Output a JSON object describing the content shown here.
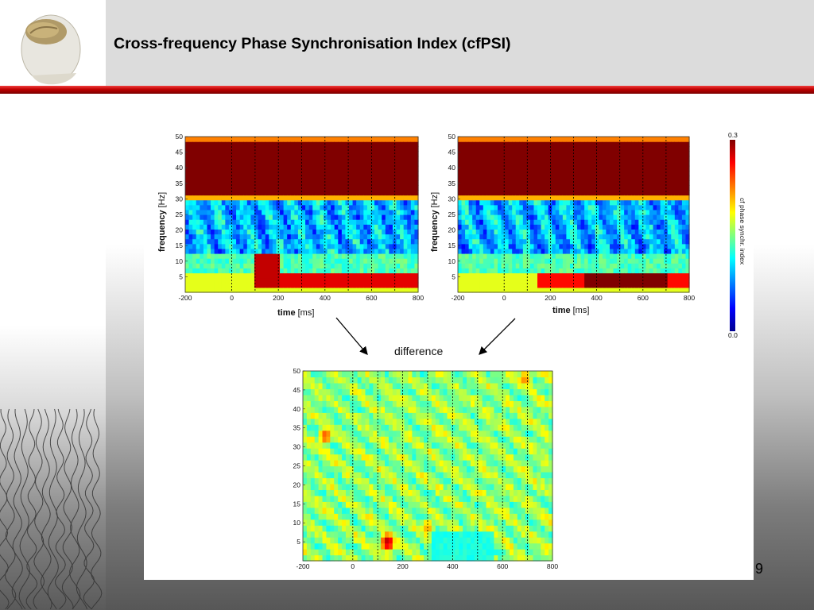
{
  "slide": {
    "title": "Cross-frequency Phase Synchronisation Index (cfPSI)",
    "page_number": "9",
    "accent_color": "#c00000"
  },
  "figure": {
    "difference_label": "difference",
    "colorbar": {
      "label": "cf phase synchr. index",
      "min_label": "0.0",
      "max_label": "0.3",
      "colormap": "jet"
    }
  },
  "chart_data": [
    {
      "type": "heatmap",
      "panel": "top-left",
      "xlabel": "time",
      "xlabel_unit": "[ms]",
      "ylabel": "frequency",
      "ylabel_unit": "[Hz]",
      "x_ticks": [
        "-200",
        "0",
        "200",
        "400",
        "600",
        "800"
      ],
      "y_ticks": [
        "5",
        "10",
        "15",
        "20",
        "25",
        "30",
        "35",
        "40",
        "45",
        "50"
      ],
      "xlim": [
        -200,
        800
      ],
      "ylim": [
        0,
        50
      ],
      "dashed_time_markers_ms": [
        0,
        100,
        200,
        300,
        400,
        500,
        600,
        700
      ],
      "regions": [
        {
          "t": [
            -200,
            800
          ],
          "f": [
            32,
            48
          ],
          "level": 0.3
        },
        {
          "t": [
            100,
            800
          ],
          "f": [
            1,
            6
          ],
          "level": 0.27
        },
        {
          "t": [
            100,
            200
          ],
          "f": [
            1,
            13
          ],
          "level": 0.28
        }
      ]
    },
    {
      "type": "heatmap",
      "panel": "top-right",
      "xlabel": "time",
      "xlabel_unit": "[ms]",
      "ylabel": "frequency",
      "ylabel_unit": "[Hz]",
      "x_ticks": [
        "-200",
        "0",
        "200",
        "400",
        "600",
        "800"
      ],
      "y_ticks": [
        "5",
        "10",
        "15",
        "20",
        "25",
        "30",
        "35",
        "40",
        "45",
        "50"
      ],
      "xlim": [
        -200,
        800
      ],
      "ylim": [
        0,
        50
      ],
      "dashed_time_markers_ms": [
        0,
        100,
        200,
        300,
        400,
        500,
        600,
        700
      ],
      "regions": [
        {
          "t": [
            -200,
            800
          ],
          "f": [
            32,
            48
          ],
          "level": 0.3
        },
        {
          "t": [
            150,
            800
          ],
          "f": [
            1,
            7
          ],
          "level": 0.26
        },
        {
          "t": [
            350,
            700
          ],
          "f": [
            1,
            6
          ],
          "level": 0.3
        }
      ]
    },
    {
      "type": "heatmap",
      "panel": "bottom-difference",
      "x_ticks": [
        "-200",
        "0",
        "200",
        "400",
        "600",
        "800"
      ],
      "y_ticks": [
        "5",
        "10",
        "15",
        "20",
        "25",
        "30",
        "35",
        "40",
        "45",
        "50"
      ],
      "xlim": [
        -200,
        800
      ],
      "ylim": [
        0,
        50
      ],
      "dashed_time_markers_ms": [
        0,
        100,
        200,
        300,
        400,
        500,
        600,
        700
      ],
      "hotspots": [
        {
          "t": 140,
          "f": 5,
          "level": 0.95
        },
        {
          "t": -110,
          "f": 33,
          "level": 0.8
        },
        {
          "t": 300,
          "f": 9,
          "level": 0.72
        },
        {
          "t": 690,
          "f": 48,
          "level": 0.75
        }
      ]
    }
  ]
}
